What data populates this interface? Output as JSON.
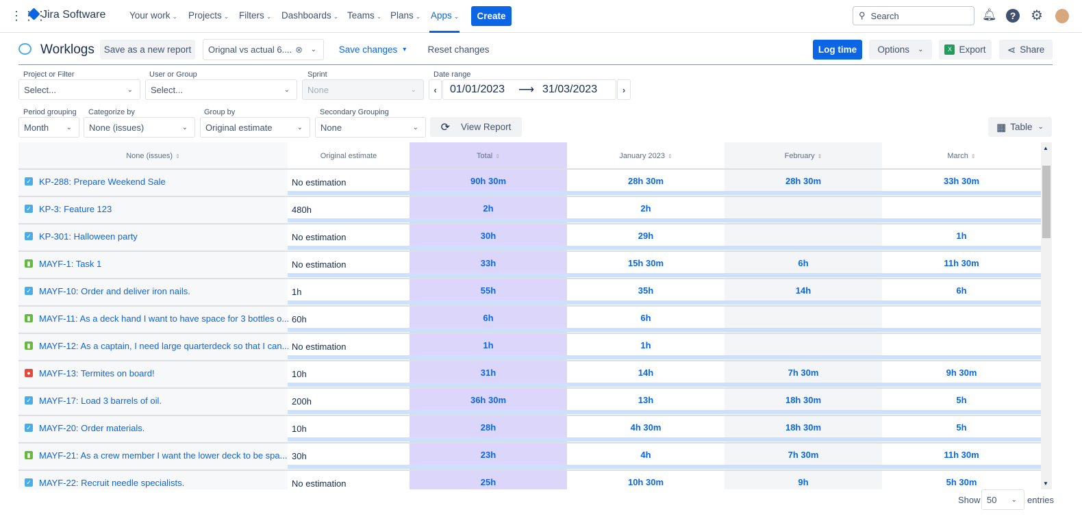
{
  "nav": {
    "app_name": "Jira Software",
    "items": [
      "Your work",
      "Projects",
      "Filters",
      "Dashboards",
      "Teams",
      "Plans",
      "Apps"
    ],
    "active": "Apps",
    "create": "Create",
    "search_placeholder": "Search"
  },
  "toolbar": {
    "title": "Worklogs",
    "save_new": "Save as a new report",
    "report_select": "Orignal vs actual 6....",
    "save_changes": "Save changes",
    "reset_changes": "Reset changes",
    "log_time": "Log time",
    "options": "Options",
    "export": "Export",
    "share": "Share"
  },
  "filters": {
    "project": {
      "label": "Project or Filter",
      "value": "Select..."
    },
    "user": {
      "label": "User or Group",
      "value": "Select..."
    },
    "sprint": {
      "label": "Sprint",
      "value": "None"
    },
    "date": {
      "label": "Date range",
      "from": "01/01/2023",
      "to": "31/03/2023",
      "arrow": "⟶"
    },
    "period": {
      "label": "Period grouping",
      "value": "Month"
    },
    "categorize": {
      "label": "Categorize by",
      "value": "None (issues)"
    },
    "group": {
      "label": "Group by",
      "value": "Original estimate"
    },
    "secondary": {
      "label": "Secondary Grouping",
      "value": "None"
    },
    "view_report": "View Report",
    "view_mode": "Table"
  },
  "table": {
    "headers": [
      "None (issues)",
      "Original estimate",
      "Total",
      "January 2023",
      "February",
      "March"
    ],
    "colors": {
      "total_bg": "#ddd6fb",
      "alt_bg": "#f4f5f7",
      "link": "#0c66e4",
      "task": "#4bade8",
      "story": "#63ba3c",
      "bug": "#e5493a"
    },
    "rows": [
      {
        "type": "task",
        "issue": "KP-288: Prepare Weekend Sale",
        "estimate": "No estimation",
        "total": "90h 30m",
        "jan": "28h 30m",
        "feb": "28h 30m",
        "mar": "33h 30m"
      },
      {
        "type": "task",
        "issue": "KP-3: Feature 123",
        "estimate": "480h",
        "total": "2h",
        "jan": "2h",
        "feb": "",
        "mar": ""
      },
      {
        "type": "task",
        "issue": "KP-301: Halloween party",
        "estimate": "No estimation",
        "total": "30h",
        "jan": "29h",
        "feb": "",
        "mar": "1h"
      },
      {
        "type": "story",
        "issue": "MAYF-1: Task 1",
        "estimate": "No estimation",
        "total": "33h",
        "jan": "15h 30m",
        "feb": "6h",
        "mar": "11h 30m"
      },
      {
        "type": "task",
        "issue": "MAYF-10: Order and deliver iron nails.",
        "estimate": "1h",
        "total": "55h",
        "jan": "35h",
        "feb": "14h",
        "mar": "6h"
      },
      {
        "type": "story",
        "issue": "MAYF-11: As a deck hand I want to have space for 3 bottles o...",
        "estimate": "60h",
        "total": "6h",
        "jan": "6h",
        "feb": "",
        "mar": ""
      },
      {
        "type": "story",
        "issue": "MAYF-12: As a captain, I need large quarterdeck so that I can...",
        "estimate": "No estimation",
        "total": "1h",
        "jan": "1h",
        "feb": "",
        "mar": ""
      },
      {
        "type": "bug",
        "issue": "MAYF-13: Termites on board!",
        "estimate": "10h",
        "total": "31h",
        "jan": "14h",
        "feb": "7h 30m",
        "mar": "9h 30m"
      },
      {
        "type": "task",
        "issue": "MAYF-17: Load 3 barrels of oil.",
        "estimate": "200h",
        "total": "36h 30m",
        "jan": "13h",
        "feb": "18h 30m",
        "mar": "5h"
      },
      {
        "type": "task",
        "issue": "MAYF-20: Order materials.",
        "estimate": "10h",
        "total": "28h",
        "jan": "4h 30m",
        "feb": "18h 30m",
        "mar": "5h"
      },
      {
        "type": "story",
        "issue": "MAYF-21: As a crew member I want the lower deck to be spa...",
        "estimate": "30h",
        "total": "23h",
        "jan": "4h",
        "feb": "7h 30m",
        "mar": "11h 30m"
      },
      {
        "type": "task",
        "issue": "MAYF-22: Recruit needle specialists.",
        "estimate": "No estimation",
        "total": "25h",
        "jan": "10h 30m",
        "feb": "9h",
        "mar": "5h 30m"
      }
    ]
  },
  "footer": {
    "show": "Show",
    "entries_value": "50",
    "entries": "entries"
  }
}
